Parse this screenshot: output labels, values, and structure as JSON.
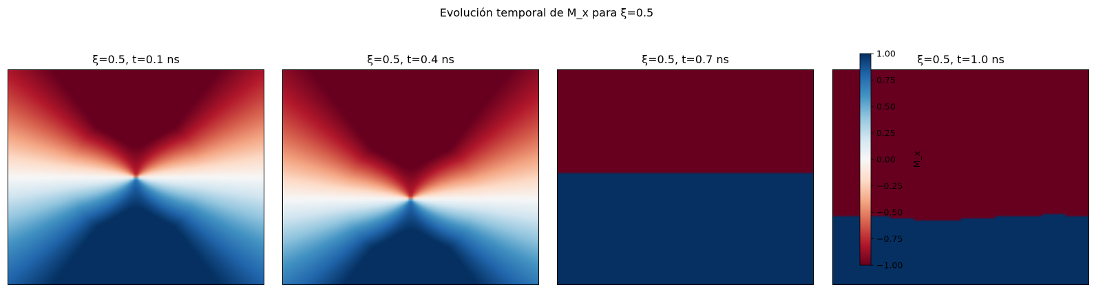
{
  "figure": {
    "title": "Evolución temporal de M_x para ξ=0.5"
  },
  "chart_data": [
    {
      "type": "heatmap",
      "title": "ξ=0.5, t=0.1 ns",
      "pattern": "butterfly_smooth",
      "center": [
        0.5,
        0.5
      ],
      "axes_ticks": "off",
      "value_range": [
        -1.0,
        1.0
      ]
    },
    {
      "type": "heatmap",
      "title": "ξ=0.5, t=0.4 ns",
      "pattern": "butterfly_smooth",
      "center": [
        0.5,
        0.6
      ],
      "axes_ticks": "off",
      "value_range": [
        -1.0,
        1.0
      ]
    },
    {
      "type": "heatmap",
      "title": "ξ=0.5, t=0.7 ns",
      "pattern": "two_domains",
      "top_value": -1.0,
      "bottom_value": 1.0,
      "boundary_fraction": 0.48,
      "axes_ticks": "off"
    },
    {
      "type": "heatmap",
      "title": "ξ=0.5, t=1.0 ns",
      "pattern": "two_domains_rough",
      "top_value": -1.0,
      "bottom_value": 1.0,
      "boundary_profile": [
        0.685,
        0.685,
        0.685,
        0.68,
        0.685,
        0.69,
        0.69,
        0.7,
        0.7,
        0.7,
        0.7,
        0.695,
        0.69,
        0.69,
        0.685,
        0.685,
        0.68,
        0.68,
        0.675,
        0.675,
        0.68,
        0.68
      ],
      "axes_ticks": "off"
    }
  ],
  "colorbar": {
    "label": "M_x",
    "colormap": "RdBu",
    "min": -1.0,
    "max": 1.0,
    "ticks": [
      {
        "value": 1.0,
        "label": "1.00"
      },
      {
        "value": 0.75,
        "label": "0.75"
      },
      {
        "value": 0.5,
        "label": "0.50"
      },
      {
        "value": 0.25,
        "label": "0.25"
      },
      {
        "value": 0.0,
        "label": "0.00"
      },
      {
        "value": -0.25,
        "label": "−0.25"
      },
      {
        "value": -0.5,
        "label": "−0.50"
      },
      {
        "value": -0.75,
        "label": "−0.75"
      },
      {
        "value": -1.0,
        "label": "−1.00"
      }
    ],
    "stops": [
      "#67001f",
      "#b2182b",
      "#d6604d",
      "#f4a582",
      "#fddbc7",
      "#f7f7f7",
      "#d1e5f0",
      "#92c5de",
      "#4393c3",
      "#2166ac",
      "#053061"
    ]
  }
}
